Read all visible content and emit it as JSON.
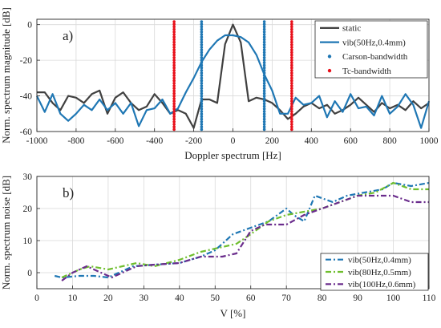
{
  "chart_data": [
    {
      "type": "line",
      "panel_label": "a)",
      "xlabel": "Doppler spectrum [Hz]",
      "ylabel": "Norm. spectrum magnitude [dB]",
      "xlim": [
        -1000,
        1000
      ],
      "ylim": [
        -60,
        3
      ],
      "xticks": [
        -1000,
        -800,
        -600,
        -400,
        -200,
        0,
        200,
        400,
        600,
        800,
        1000
      ],
      "yticks": [
        0,
        -20,
        -40,
        -60
      ],
      "grid": true,
      "legend_position": "top-right",
      "x": [
        -1000,
        -960,
        -920,
        -880,
        -840,
        -800,
        -760,
        -720,
        -680,
        -640,
        -600,
        -560,
        -520,
        -480,
        -440,
        -400,
        -360,
        -320,
        -280,
        -240,
        -200,
        -160,
        -120,
        -80,
        -40,
        0,
        40,
        80,
        120,
        160,
        200,
        240,
        280,
        320,
        360,
        400,
        440,
        480,
        520,
        560,
        600,
        640,
        680,
        720,
        760,
        800,
        840,
        880,
        920,
        960,
        1000
      ],
      "series": [
        {
          "name": "static",
          "color": "#404040",
          "style": "line",
          "values": [
            -38,
            -38,
            -44,
            -48,
            -40,
            -41,
            -44,
            -39,
            -37,
            -50,
            -41,
            -38,
            -44,
            -48,
            -46,
            -39,
            -44,
            -50,
            -48,
            -50,
            -58,
            -42,
            -42,
            -44,
            -11,
            0,
            -10,
            -43,
            -41,
            -42,
            -44,
            -48,
            -53,
            -50,
            -46,
            -44,
            -47,
            -45,
            -50,
            -48,
            -45,
            -41,
            -45,
            -49,
            -44,
            -47,
            -45,
            -48,
            -43,
            -47,
            -44
          ]
        },
        {
          "name": "vib(50Hz,0.4mm)",
          "color": "#1f77b4",
          "style": "line",
          "values": [
            -40,
            -49,
            -39,
            -50,
            -54,
            -50,
            -45,
            -48,
            -42,
            -48,
            -44,
            -50,
            -44,
            -57,
            -48,
            -47,
            -42,
            -50,
            -47,
            -38,
            -30,
            -21,
            -14,
            -9,
            -6,
            -6,
            -7,
            -10,
            -17,
            -28,
            -37,
            -50,
            -50,
            -41,
            -45,
            -44,
            -40,
            -52,
            -43,
            -49,
            -39,
            -47,
            -46,
            -51,
            -40,
            -50,
            -46,
            -39,
            -45,
            -58,
            -43
          ]
        },
        {
          "name": "Carson-bandwidth",
          "color": "#1f77b4",
          "style": "vline-dots",
          "positions": [
            -160,
            160
          ]
        },
        {
          "name": "Tc-bandwidth",
          "color": "#e8101a",
          "style": "vline-dots",
          "positions": [
            -300,
            300
          ]
        }
      ]
    },
    {
      "type": "line",
      "panel_label": "b)",
      "xlabel": "V  [%]",
      "ylabel": "Norm. spectrum noise [dB]",
      "xlim": [
        0,
        110
      ],
      "ylim": [
        -5,
        30
      ],
      "xticks": [
        0,
        10,
        20,
        30,
        40,
        50,
        60,
        70,
        80,
        90,
        100,
        110
      ],
      "yticks": [
        0,
        10,
        20,
        30
      ],
      "grid": true,
      "legend_position": "bottom-right",
      "series": [
        {
          "name": "vib(50Hz,0.4mm)",
          "color": "#1f77b4",
          "dash": "dashdot",
          "x": [
            5,
            7,
            12,
            16,
            20,
            27,
            33,
            40,
            46,
            50,
            55,
            60,
            65,
            70,
            72,
            75,
            78,
            83,
            87,
            92,
            97,
            100,
            105,
            110
          ],
          "values": [
            -1,
            -1.5,
            -1,
            -1,
            -1.5,
            2,
            2.5,
            3,
            5,
            7,
            12,
            14,
            16,
            20,
            18,
            16,
            24,
            22,
            24,
            25,
            26,
            28,
            27,
            28
          ]
        },
        {
          "name": "vib(80Hz,0.5mm)",
          "color": "#6fbe2e",
          "dash": "dashdot",
          "x": [
            7,
            12,
            15,
            20,
            28,
            33,
            40,
            46,
            52,
            56,
            60,
            65,
            70,
            75,
            80,
            85,
            90,
            95,
            100,
            105,
            110
          ],
          "values": [
            -1.5,
            1,
            2,
            1,
            3,
            2,
            4,
            6.5,
            8,
            9,
            12,
            16,
            18,
            19,
            20,
            22,
            24,
            25,
            28,
            26,
            26
          ]
        },
        {
          "name": "vib(100Hz,0.6mm)",
          "color": "#6a2c8c",
          "dash": "dashdot",
          "x": [
            7,
            10,
            14,
            18,
            21,
            28,
            33,
            40,
            46,
            52,
            56,
            60,
            64,
            70,
            75,
            80,
            85,
            90,
            95,
            100,
            105,
            110
          ],
          "values": [
            -2.5,
            0,
            2,
            0,
            -1.5,
            2,
            2.5,
            3,
            5,
            5,
            6,
            13,
            15,
            15,
            18,
            20,
            22,
            24,
            24,
            24,
            22,
            22
          ]
        }
      ]
    }
  ]
}
